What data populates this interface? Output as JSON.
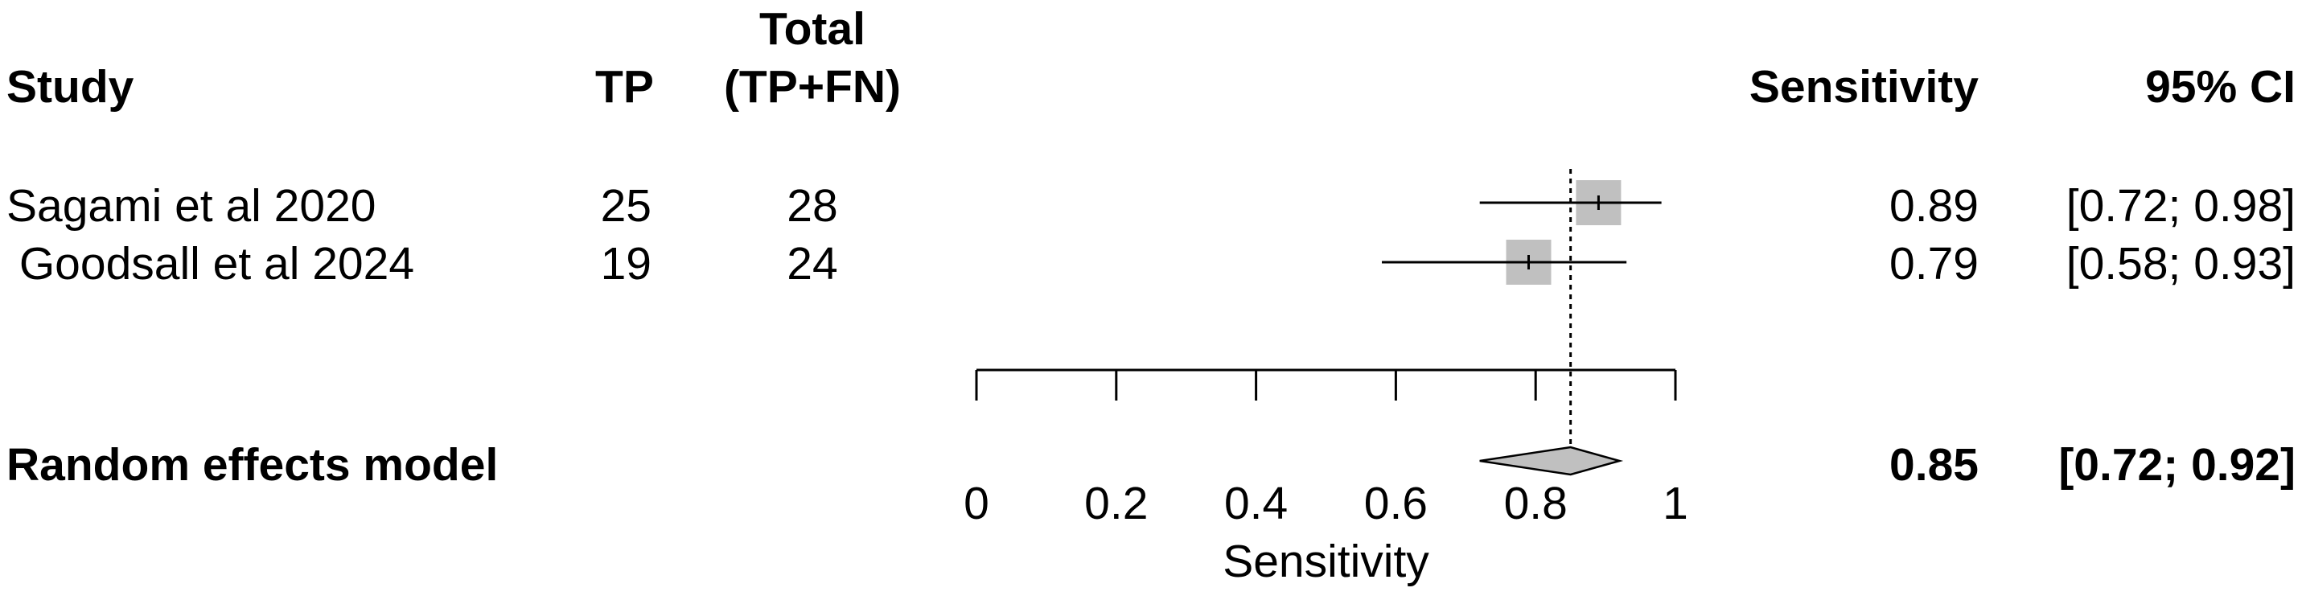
{
  "headers": {
    "study": "Study",
    "tp": "TP",
    "total_line1": "Total",
    "total_line2": "(TP+FN)",
    "sensitivity": "Sensitivity",
    "ci": "95% CI"
  },
  "studies": [
    {
      "name": "Sagami et al 2020",
      "tp": "25",
      "total": "28",
      "sens": "0.89",
      "ci": "[0.72; 0.98]"
    },
    {
      "name": " Goodsall et al 2024",
      "tp": "19",
      "total": "24",
      "sens": "0.79",
      "ci": "[0.58; 0.93]"
    }
  ],
  "model": {
    "label": "Random effects model",
    "sens": "0.85",
    "ci": "[0.72; 0.92]"
  },
  "axis": {
    "label": "Sensitivity",
    "ticks": [
      "0",
      "0.2",
      "0.4",
      "0.6",
      "0.8",
      "1"
    ]
  },
  "colors": {
    "box": "#c0c0c0",
    "diamond": "#c0c0c0",
    "line": "#000000"
  },
  "chart_data": {
    "type": "forest",
    "xlim": [
      0,
      1
    ],
    "xticks": [
      0,
      0.2,
      0.4,
      0.6,
      0.8,
      1
    ],
    "xlabel": "Sensitivity",
    "reference_line": 0.85,
    "studies": [
      {
        "name": "Sagami et al 2020",
        "estimate": 0.89,
        "lower": 0.72,
        "upper": 0.98,
        "weight": 0.5
      },
      {
        "name": "Goodsall et al 2024",
        "estimate": 0.79,
        "lower": 0.58,
        "upper": 0.93,
        "weight": 0.5
      }
    ],
    "pooled": {
      "name": "Random effects model",
      "estimate": 0.85,
      "lower": 0.72,
      "upper": 0.92
    }
  }
}
